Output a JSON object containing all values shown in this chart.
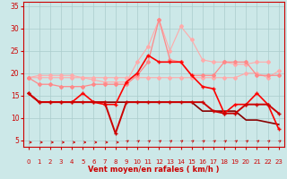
{
  "x": [
    0,
    1,
    2,
    3,
    4,
    5,
    6,
    7,
    8,
    9,
    10,
    11,
    12,
    13,
    14,
    15,
    16,
    17,
    18,
    19,
    20,
    21,
    22,
    23
  ],
  "series": [
    {
      "y": [
        19.0,
        19.0,
        19.0,
        19.0,
        19.0,
        19.0,
        19.0,
        19.0,
        19.0,
        19.0,
        19.0,
        19.0,
        19.0,
        19.0,
        19.0,
        19.0,
        19.0,
        19.0,
        19.0,
        19.0,
        20.0,
        20.0,
        19.0,
        20.5
      ],
      "color": "#ffaaaa",
      "marker": "D",
      "markersize": 2,
      "linewidth": 0.8,
      "zorder": 2
    },
    {
      "y": [
        19.0,
        19.5,
        19.5,
        19.5,
        19.5,
        19.0,
        18.5,
        18.0,
        18.0,
        18.0,
        22.5,
        26.0,
        32.0,
        25.0,
        30.5,
        27.5,
        23.0,
        22.5,
        22.5,
        22.0,
        22.0,
        22.5,
        22.5,
        null
      ],
      "color": "#ffaaaa",
      "marker": "D",
      "markersize": 2,
      "linewidth": 0.8,
      "zorder": 2
    },
    {
      "y": [
        19.0,
        17.5,
        17.5,
        17.0,
        17.0,
        17.0,
        17.5,
        17.5,
        17.5,
        17.5,
        19.5,
        22.5,
        32.0,
        23.0,
        22.5,
        19.5,
        19.5,
        19.5,
        22.5,
        22.5,
        22.5,
        19.5,
        19.5,
        19.5
      ],
      "color": "#ff8888",
      "marker": "D",
      "markersize": 2,
      "linewidth": 0.9,
      "zorder": 3
    },
    {
      "y": [
        15.5,
        13.5,
        13.5,
        13.5,
        13.5,
        15.5,
        13.5,
        13.0,
        13.0,
        18.0,
        20.0,
        24.0,
        22.5,
        22.5,
        22.5,
        19.5,
        17.0,
        16.5,
        11.0,
        13.0,
        13.0,
        15.5,
        13.0,
        7.5
      ],
      "color": "#ff0000",
      "marker": "+",
      "markersize": 3.5,
      "linewidth": 1.2,
      "zorder": 4
    },
    {
      "y": [
        15.5,
        13.5,
        13.5,
        13.5,
        13.5,
        13.5,
        13.5,
        13.5,
        6.5,
        13.5,
        13.5,
        13.5,
        13.5,
        13.5,
        13.5,
        13.5,
        13.5,
        11.5,
        11.0,
        11.0,
        13.0,
        13.0,
        13.0,
        11.0
      ],
      "color": "#cc0000",
      "marker": "+",
      "markersize": 3.5,
      "linewidth": 1.4,
      "zorder": 5
    },
    {
      "y": [
        15.5,
        13.5,
        13.5,
        13.5,
        13.5,
        13.5,
        13.5,
        13.5,
        13.5,
        13.5,
        13.5,
        13.5,
        13.5,
        13.5,
        13.5,
        13.5,
        11.5,
        11.5,
        11.5,
        11.5,
        9.5,
        9.5,
        9.0,
        8.5
      ],
      "color": "#880000",
      "marker": "None",
      "markersize": 0,
      "linewidth": 1.2,
      "zorder": 3
    }
  ],
  "xlim": [
    -0.5,
    23.5
  ],
  "ylim": [
    3.5,
    36
  ],
  "yticks": [
    5,
    10,
    15,
    20,
    25,
    30,
    35
  ],
  "xticks": [
    0,
    1,
    2,
    3,
    4,
    5,
    6,
    7,
    8,
    9,
    10,
    11,
    12,
    13,
    14,
    15,
    16,
    17,
    18,
    19,
    20,
    21,
    22,
    23
  ],
  "xlabel": "Vent moyen/en rafales ( km/h )",
  "xlabel_color": "#cc0000",
  "bg_color": "#cce8e8",
  "grid_color": "#aacccc",
  "tick_color": "#cc0000",
  "label_color": "#cc0000"
}
